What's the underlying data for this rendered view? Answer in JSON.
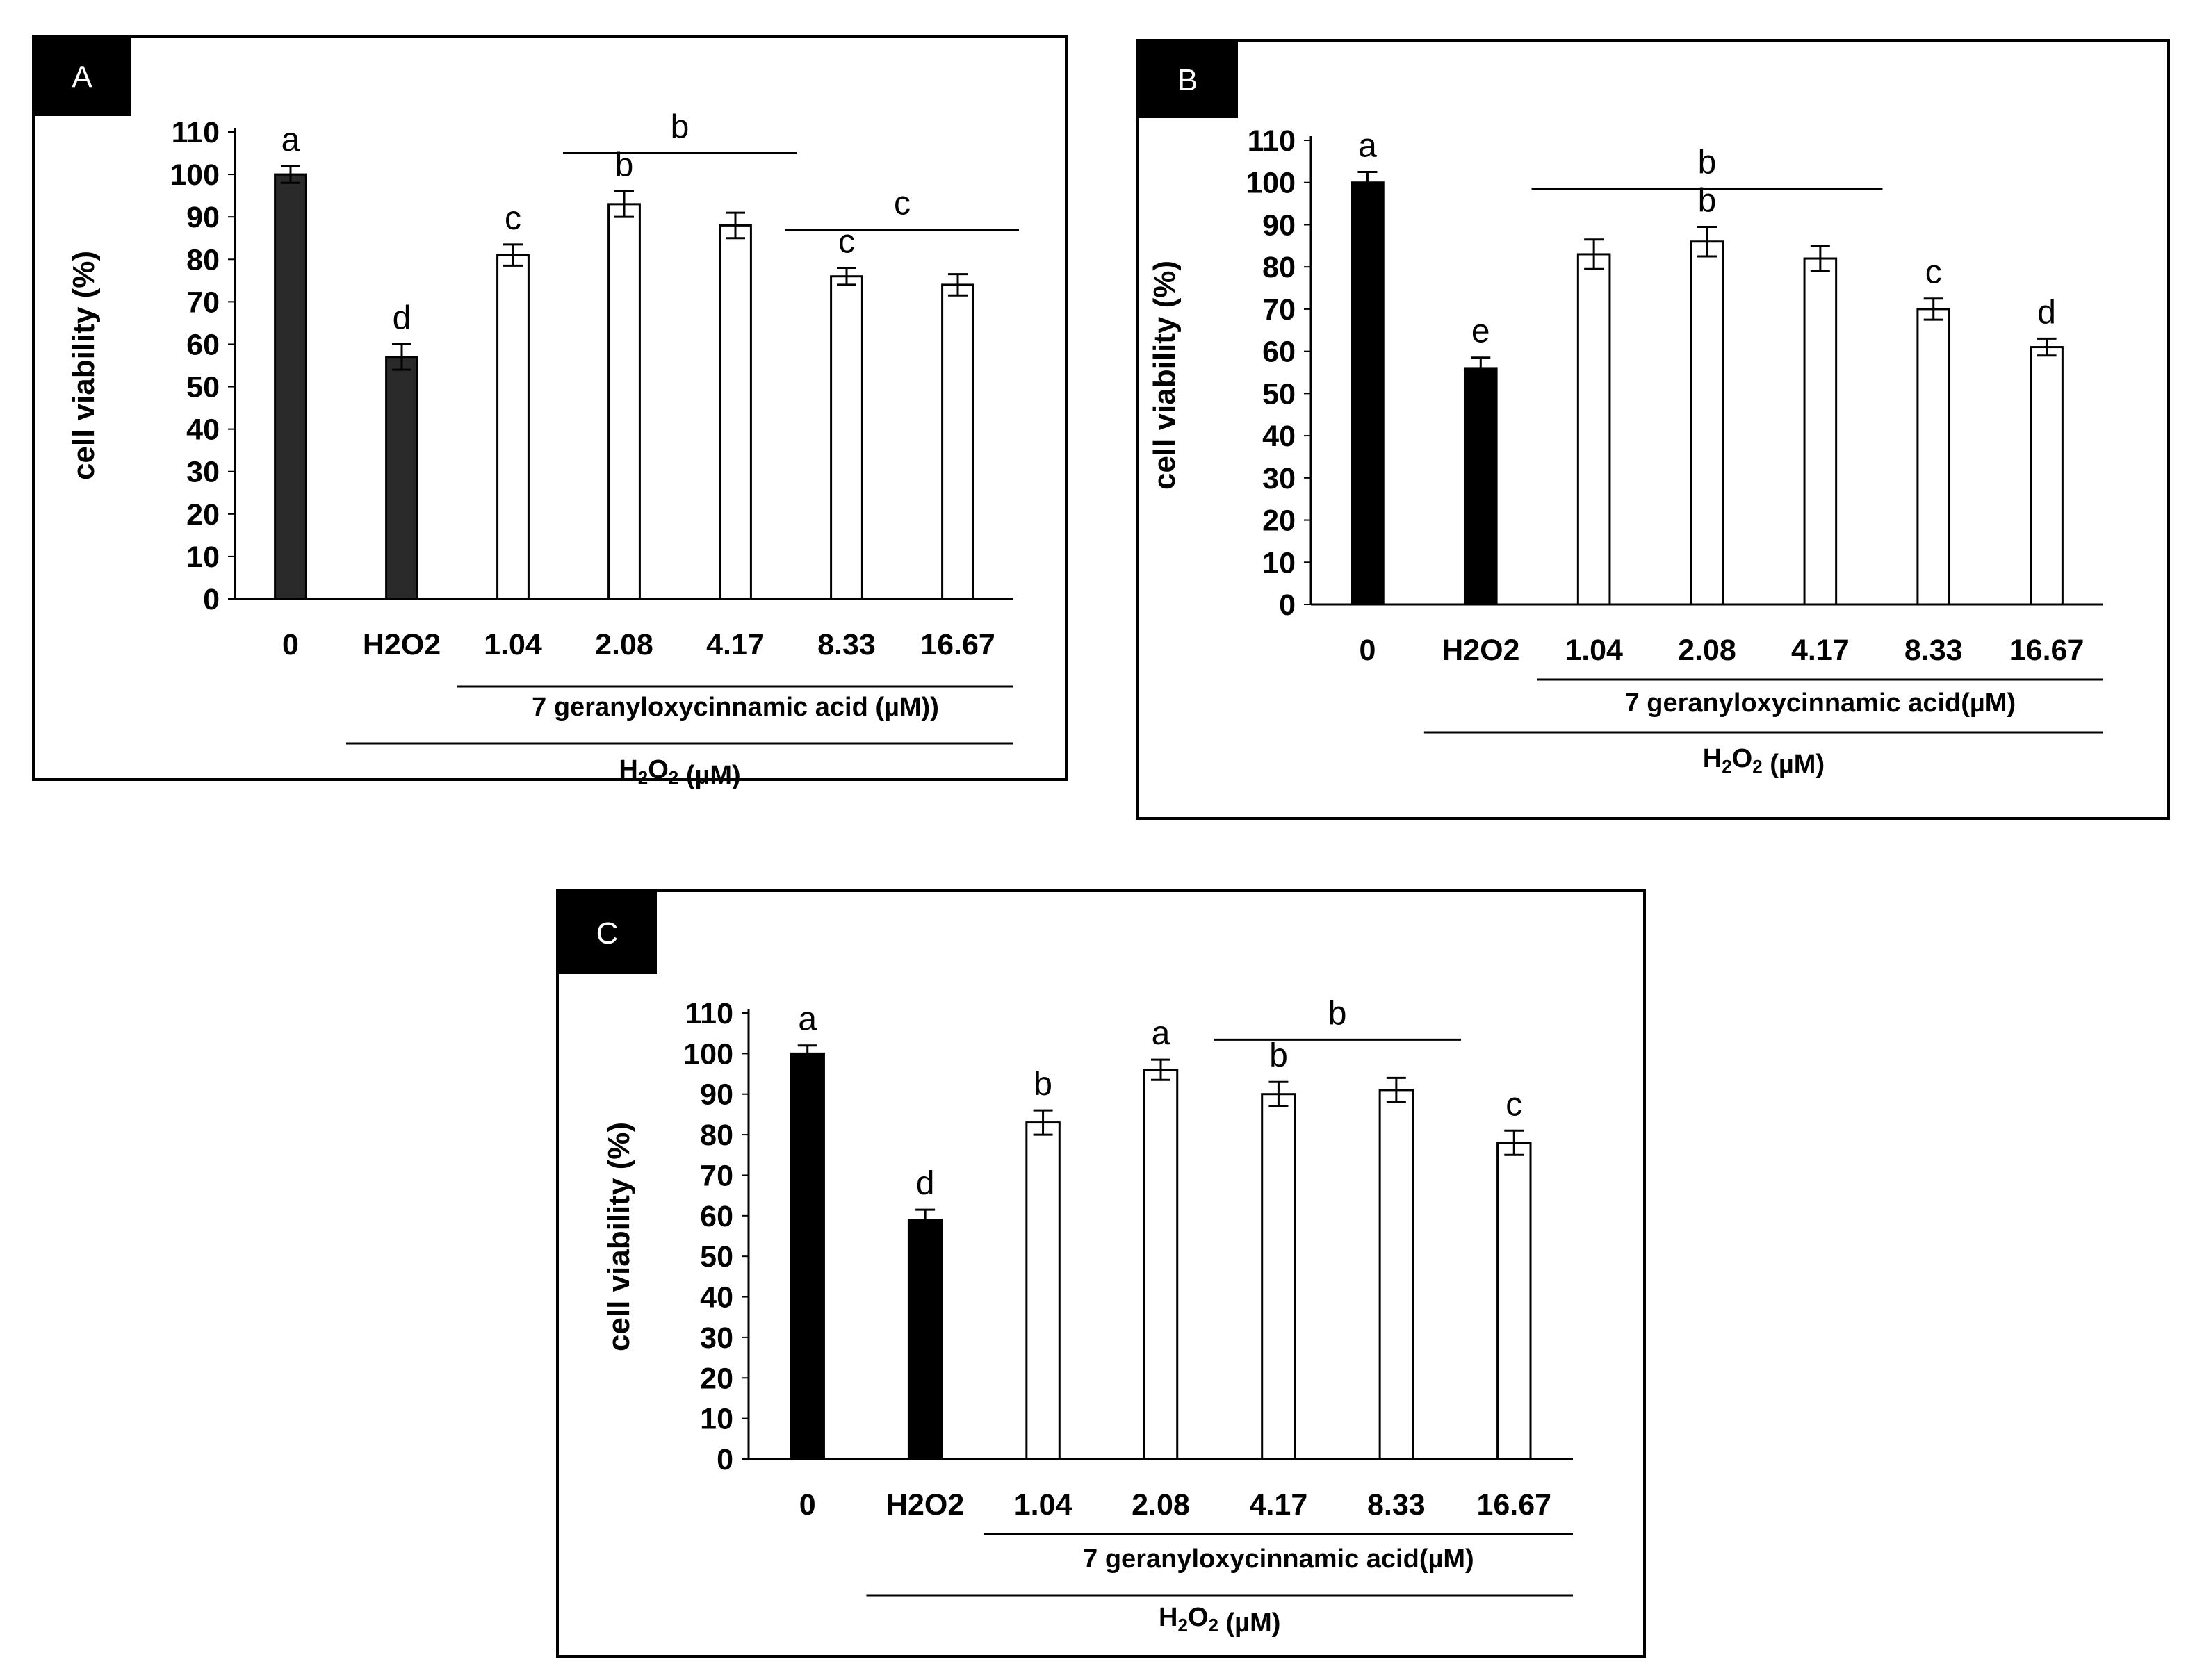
{
  "colors": {
    "dark_bar": "#2a2a2a",
    "black_bar": "#000000",
    "open_bar": "#ffffff",
    "axis": "#000000",
    "label_bg": "#000000"
  },
  "chart_data": [
    {
      "type": "bar",
      "panel_label": "A",
      "title": "",
      "categories": [
        "0",
        "H2O2",
        "1.04",
        "2.08",
        "4.17",
        "8.33",
        "16.67"
      ],
      "values": [
        100,
        57,
        81,
        93,
        88,
        76,
        74
      ],
      "errors": [
        2,
        3,
        2.5,
        3,
        3,
        2,
        2.5
      ],
      "bar_fill": [
        "dark",
        "dark",
        "open",
        "open",
        "open",
        "open",
        "open"
      ],
      "significance": [
        "a",
        "d",
        "c",
        "b",
        "",
        "c",
        ""
      ],
      "significance_groups": [
        {
          "label": "b",
          "from": 3,
          "to": 4
        },
        {
          "label": "c",
          "from": 5,
          "to": 6
        }
      ],
      "ylabel": "cell viability (%)",
      "yticks": [
        0,
        10,
        20,
        30,
        40,
        50,
        60,
        70,
        80,
        90,
        100,
        110
      ],
      "ylim": [
        0,
        110
      ],
      "xlabel_groups": [
        {
          "label": "7 geranyloxycinnamic acid (µM))",
          "from": 2,
          "to": 6
        },
        {
          "label": "H2O2 (µM)",
          "from": 1,
          "to": 6
        }
      ]
    },
    {
      "type": "bar",
      "panel_label": "B",
      "title": "",
      "categories": [
        "0",
        "H2O2",
        "1.04",
        "2.08",
        "4.17",
        "8.33",
        "16.67"
      ],
      "values": [
        100,
        56,
        83,
        86,
        82,
        70,
        61
      ],
      "errors": [
        2.5,
        2.5,
        3.5,
        3.5,
        3,
        2.5,
        2
      ],
      "bar_fill": [
        "black",
        "black",
        "open",
        "open",
        "open",
        "open",
        "open"
      ],
      "significance": [
        "a",
        "e",
        "",
        "b",
        "",
        "c",
        "d"
      ],
      "significance_groups": [
        {
          "label": "b",
          "from": 2,
          "to": 4
        }
      ],
      "ylabel": "cell viability (%)",
      "yticks": [
        0,
        10,
        20,
        30,
        40,
        50,
        60,
        70,
        80,
        90,
        100,
        110
      ],
      "ylim": [
        0,
        110
      ],
      "xlabel_groups": [
        {
          "label": "7 geranyloxycinnamic acid(µM)",
          "from": 2,
          "to": 6
        },
        {
          "label": "H2O2 (µM)",
          "from": 1,
          "to": 6
        }
      ]
    },
    {
      "type": "bar",
      "panel_label": "C",
      "title": "",
      "categories": [
        "0",
        "H2O2",
        "1.04",
        "2.08",
        "4.17",
        "8.33",
        "16.67"
      ],
      "values": [
        100,
        59,
        83,
        96,
        90,
        91,
        78
      ],
      "errors": [
        2,
        2.5,
        3,
        2.5,
        3,
        3,
        3
      ],
      "bar_fill": [
        "black",
        "black",
        "open",
        "open",
        "open",
        "open",
        "open"
      ],
      "significance": [
        "a",
        "d",
        "b",
        "a",
        "b",
        "",
        "c"
      ],
      "significance_groups": [
        {
          "label": "b",
          "from": 4,
          "to": 5
        }
      ],
      "ylabel": "cell viability (%)",
      "yticks": [
        0,
        10,
        20,
        30,
        40,
        50,
        60,
        70,
        80,
        90,
        100,
        110
      ],
      "ylim": [
        0,
        110
      ],
      "xlabel_groups": [
        {
          "label": "7 geranyloxycinnamic acid(µM)",
          "from": 2,
          "to": 6
        },
        {
          "label": "H2O2 (µM)",
          "from": 1,
          "to": 6
        }
      ]
    }
  ]
}
